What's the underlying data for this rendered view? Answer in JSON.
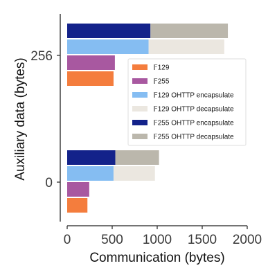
{
  "chart_data": {
    "type": "bar",
    "orientation": "horizontal",
    "xlabel": "Communication (bytes)",
    "ylabel": "Auxiliary data (bytes)",
    "xlim": [
      0,
      2000
    ],
    "xticks": [
      0,
      500,
      1000,
      1500,
      2000
    ],
    "categories": [
      "0",
      "256"
    ],
    "grid": false,
    "legend_position": "right-center",
    "series": [
      {
        "name": "𝔽129",
        "color": "#f47d3d",
        "values": [
          225,
          515
        ],
        "stacked_on": null
      },
      {
        "name": "𝔽255",
        "color": "#a858a0",
        "values": [
          245,
          530
        ],
        "stacked_on": null
      },
      {
        "name": "𝔽129 OHTTP encapsulate",
        "color": "#85bdf2",
        "values": [
          515,
          905
        ],
        "stacked_on": null
      },
      {
        "name": "𝔽129 OHTTP decapsulate",
        "color": "#ebe7e0",
        "values": [
          460,
          840
        ],
        "stacked_on": "𝔽129 OHTTP encapsulate"
      },
      {
        "name": "𝔽255 OHTTP encapsulate",
        "color": "#13228a",
        "values": [
          535,
          925
        ],
        "stacked_on": null
      },
      {
        "name": "𝔽255 OHTTP decapsulate",
        "color": "#bbb7ac",
        "values": [
          485,
          860
        ],
        "stacked_on": "𝔽255 OHTTP encapsulate"
      }
    ]
  }
}
